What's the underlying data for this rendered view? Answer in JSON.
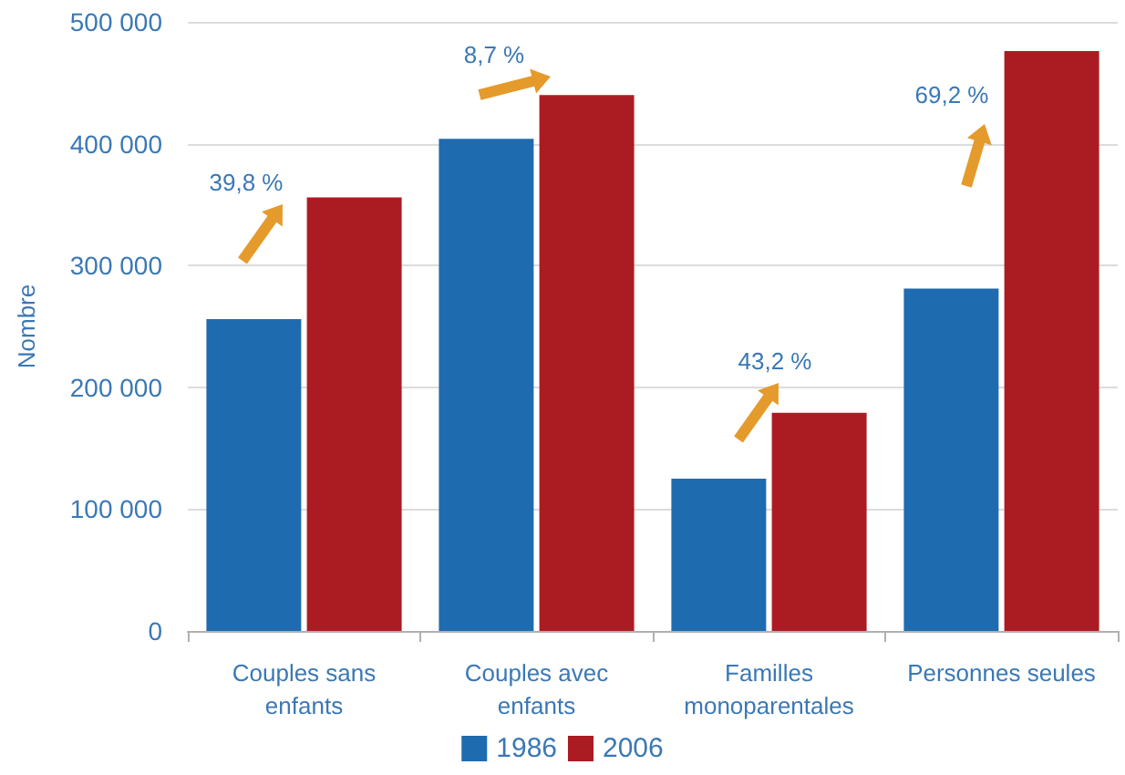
{
  "chart_data": {
    "type": "bar",
    "ylabel": "Nombre",
    "categories": [
      "Couples sans\nenfants",
      "Couples avec\nenfants",
      "Familles\nmonoparentales",
      "Personnes seules"
    ],
    "series": [
      {
        "name": "1986",
        "color": "#1f6bb0",
        "values": [
          256000,
          404000,
          125000,
          281000
        ]
      },
      {
        "name": "2006",
        "color": "#ab1c22",
        "values": [
          356000,
          440000,
          179000,
          476000
        ]
      }
    ],
    "ylim": [
      0,
      500000
    ],
    "yticks": [
      0,
      100000,
      200000,
      300000,
      400000,
      500000
    ],
    "grid": "y",
    "legend": "bottom",
    "annotations": [
      "39,8 %",
      "8,7 %",
      "43,2 %",
      "69,2 %"
    ]
  }
}
